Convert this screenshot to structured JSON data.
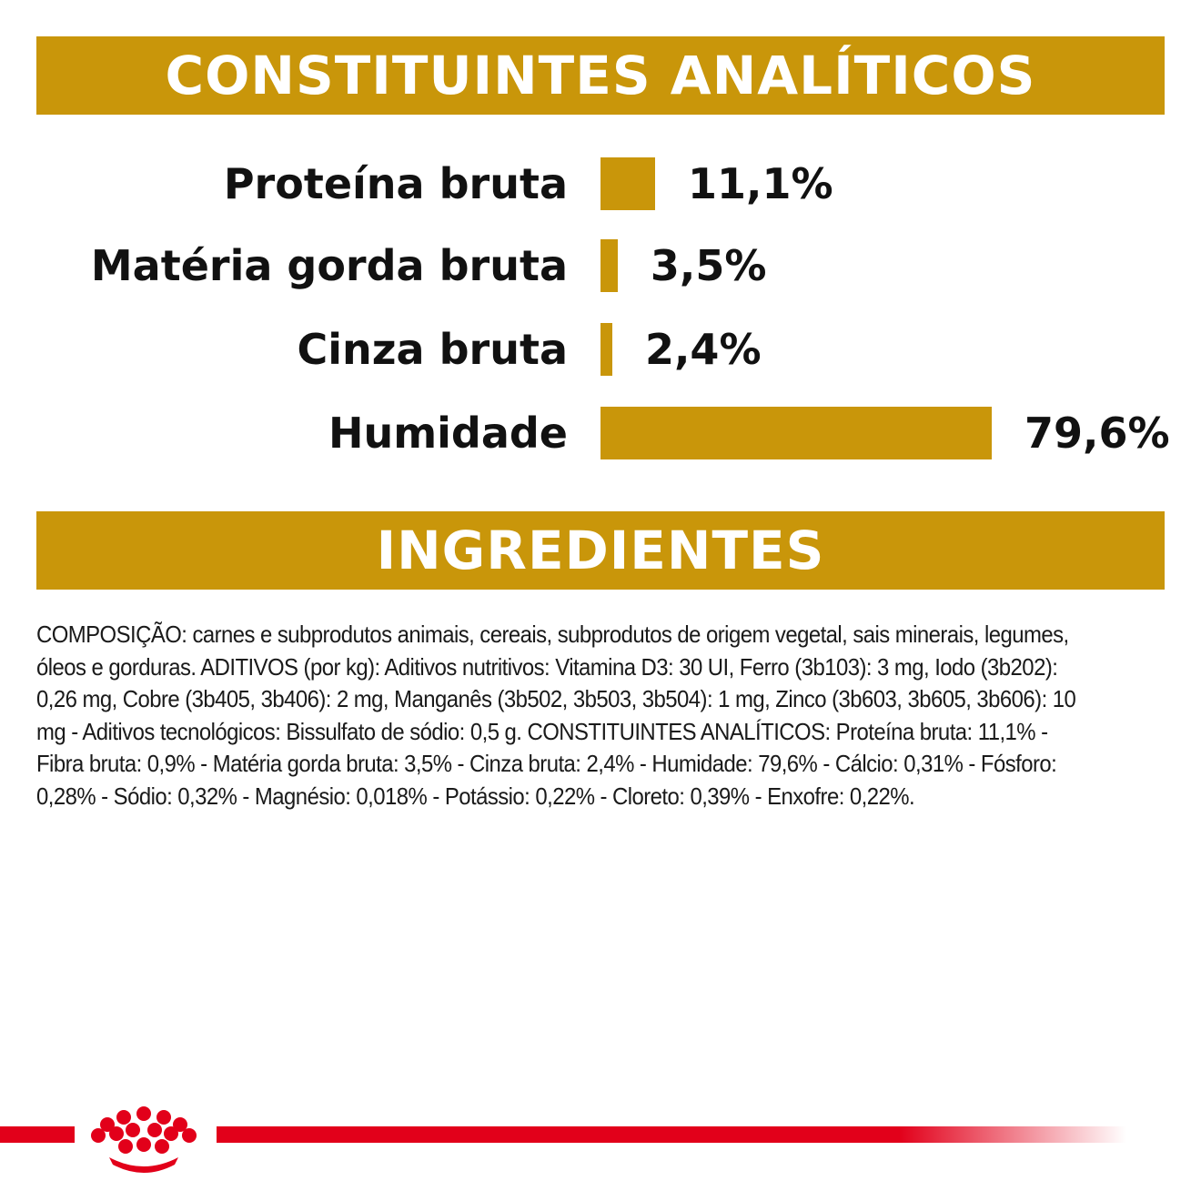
{
  "colors": {
    "gold": "#c9960a",
    "red": "#e2001a",
    "text": "#111111"
  },
  "header": {
    "title": "CONSTITUINTES ANALÍTICOS"
  },
  "chart_data": {
    "type": "bar",
    "title": "CONSTITUINTES ANALÍTICOS",
    "orientation": "horizontal",
    "categories": [
      "Proteína bruta",
      "Matéria gorda bruta",
      "Cinza bruta",
      "Humidade"
    ],
    "values": [
      11.1,
      3.5,
      2.4,
      79.6
    ],
    "value_labels": [
      "11,1%",
      "3,5%",
      "2,4%",
      "79,6%"
    ],
    "unit": "%",
    "xlim": [
      0,
      79.6
    ],
    "grid": false
  },
  "ingredients": {
    "title": "INGREDIENTES",
    "composition": "COMPOSIÇÃO: carnes e subprodutos animais, cereais, subprodutos de origem vegetal, sais minerais, legumes, óleos e gorduras. ADITIVOS (por kg): Aditivos nutritivos: Vitamina D3: 30 UI, Ferro (3b103): 3 mg, Iodo (3b202): 0,26 mg, Cobre (3b405, 3b406): 2 mg, Manganês (3b502, 3b503, 3b504): 1 mg, Zinco (3b603, 3b605, 3b606): 10 mg - Aditivos tecnológicos: Bissulfato de sódio: 0,5 g. CONSTITUINTES ANALÍTICOS: Proteína bruta: 11,1% - Fibra bruta: 0,9% - Matéria gorda bruta: 3,5% - Cinza bruta: 2,4% - Humidade: 79,6% - Cálcio: 0,31% - Fósforo: 0,28% - Sódio: 0,32% - Magnésio: 0,018% - Potássio: 0,22% - Cloreto: 0,39% - Enxofre: 0,22%."
  },
  "footer": {
    "logo_icon": "royal-canin-crown-icon"
  }
}
